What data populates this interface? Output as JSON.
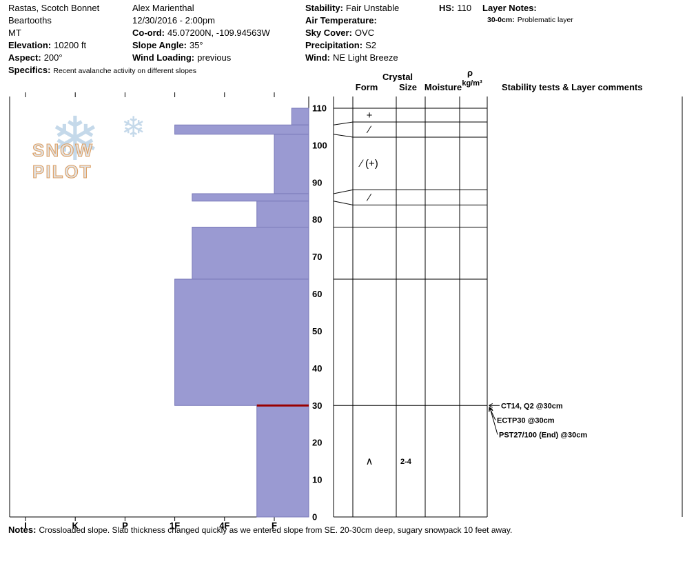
{
  "header": {
    "col1": {
      "line1": "Rastas, Scotch Bonnet",
      "line2": "Beartooths",
      "line3": "MT",
      "elevation_label": "Elevation:",
      "elevation_value": "10200 ft",
      "aspect_label": "Aspect:",
      "aspect_value": "200°",
      "specifics_label": "Specifics:",
      "specifics_value": "Recent avalanche activity on different slopes"
    },
    "col2": {
      "observer": "Alex Marienthal",
      "datetime": "12/30/2016 - 2:00pm",
      "coord_label": "Co-ord:",
      "coord_value": "45.07200N, -109.94563W",
      "slope_angle_label": "Slope Angle:",
      "slope_angle_value": "35°",
      "wind_loading_label": "Wind Loading:",
      "wind_loading_value": "previous"
    },
    "col3": {
      "stability_label": "Stability:",
      "stability_value": "Fair Unstable",
      "air_temp_label": "Air Temperature:",
      "air_temp_value": "",
      "sky_label": "Sky Cover:",
      "sky_value": "OVC",
      "precip_label": "Precipitation:",
      "precip_value": "S2",
      "wind_label": "Wind:",
      "wind_value": "NE Light Breeze"
    },
    "hs_label": "HS:",
    "hs_value": "110",
    "layer_notes": {
      "label": "Layer Notes:",
      "entry_range": "30-0cm:",
      "entry_text": "Problematic layer"
    }
  },
  "panel_headers": {
    "crystal": "Crystal",
    "form": "Form",
    "size": "Size",
    "moisture": "Moisture",
    "density_symbol": "ρ",
    "density_units": "kg/m³",
    "comments": "Stability tests & Layer comments"
  },
  "footer": {
    "notes_label": "Notes:",
    "notes_text": "Crossloaded slope. Slab thickness changed quickly as we entered slope from SE. 20-30cm deep, sugary snowpack 10 feet away."
  },
  "watermark": {
    "text": "SNOW PILOT",
    "snowflake": "❄"
  },
  "chart_data": {
    "type": "bar",
    "subtype": "snow-hardness-profile",
    "hs_cm": 110,
    "depth_unit": "cm",
    "depth_ticks": [
      0,
      10,
      20,
      30,
      40,
      50,
      60,
      70,
      80,
      90,
      100,
      110
    ],
    "hardness_labels": [
      "I",
      "K",
      "P",
      "1F",
      "4F",
      "F"
    ],
    "layers": [
      {
        "top_cm": 110,
        "bottom_cm": 105.5,
        "hardness": "F-",
        "grain_form_symbol": "+",
        "grain_form": "PP",
        "grain_size_mm": "",
        "moisture": ""
      },
      {
        "top_cm": 105.5,
        "bottom_cm": 103,
        "hardness": "1F",
        "grain_form_symbol": "∕",
        "grain_form": "DF",
        "grain_size_mm": "",
        "moisture": ""
      },
      {
        "top_cm": 103,
        "bottom_cm": 87,
        "hardness": "F",
        "grain_form_symbol": "∕ (+)",
        "grain_form": "DF (PP)",
        "grain_size_mm": "",
        "moisture": ""
      },
      {
        "top_cm": 87,
        "bottom_cm": 85,
        "hardness": "1F-",
        "grain_form_symbol": "∕",
        "grain_form": "DF",
        "grain_size_mm": "",
        "moisture": ""
      },
      {
        "top_cm": 85,
        "bottom_cm": 78,
        "hardness": "F+",
        "grain_form_symbol": "",
        "grain_form": "",
        "grain_size_mm": "",
        "moisture": ""
      },
      {
        "top_cm": 78,
        "bottom_cm": 64,
        "hardness": "1F-",
        "grain_form_symbol": "",
        "grain_form": "",
        "grain_size_mm": "",
        "moisture": ""
      },
      {
        "top_cm": 64,
        "bottom_cm": 30,
        "hardness": "1F",
        "grain_form_symbol": "",
        "grain_form": "",
        "grain_size_mm": "",
        "moisture": ""
      },
      {
        "top_cm": 30,
        "bottom_cm": 0,
        "hardness": "F+",
        "grain_form_symbol": "∧",
        "grain_form": "DH",
        "grain_size_mm": "2-4",
        "moisture": ""
      }
    ],
    "flagged_interface_cm": 30,
    "stability_tests": [
      {
        "label": "CT14, Q2 @30cm"
      },
      {
        "label": "ECTP30 @30cm"
      },
      {
        "label": "PST27/100 (End) @30cm"
      }
    ],
    "colors": {
      "bar_fill": "#9a9ad2",
      "bar_stroke": "#7878b8",
      "flag_line": "#990000",
      "axis": "#000000"
    }
  }
}
